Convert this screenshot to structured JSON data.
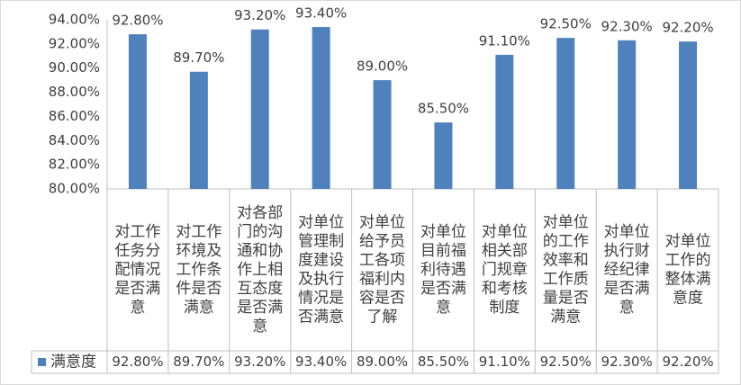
{
  "chart_data": {
    "type": "bar",
    "categories": [
      "对工作任务分配情况是否满意",
      "对工作环境及工作条件是否满意",
      "对各部门的沟通和协作上相互态度是否满意",
      "对单位管理制度建设及执行情况是否满意",
      "对单位给予员工各项福利内容是否了解",
      "对单位目前福利待遇是否满意",
      "对单位相关部门规章和考核制度",
      "对单位的工作效率和工作质量是否满意",
      "对单位执行财经纪律是否满意",
      "对单位工作的整体满意度"
    ],
    "series": [
      {
        "name": "满意度",
        "color": "#4f81bd",
        "values": [
          92.8,
          89.7,
          93.2,
          93.4,
          89.0,
          85.5,
          91.1,
          92.5,
          92.3,
          92.2
        ],
        "value_labels": [
          "92.80%",
          "89.70%",
          "93.20%",
          "93.40%",
          "89.00%",
          "85.50%",
          "91.10%",
          "92.50%",
          "92.30%",
          "92.20%"
        ]
      }
    ],
    "ylim": [
      80,
      94
    ],
    "yticks": [
      {
        "value": 80,
        "label": "80.00%"
      },
      {
        "value": 82,
        "label": "82.00%"
      },
      {
        "value": 84,
        "label": "84.00%"
      },
      {
        "value": 86,
        "label": "86.00%"
      },
      {
        "value": 88,
        "label": "88.00%"
      },
      {
        "value": 90,
        "label": "90.00%"
      },
      {
        "value": 92,
        "label": "92.00%"
      },
      {
        "value": 94,
        "label": "94.00%"
      }
    ],
    "grid": false
  }
}
